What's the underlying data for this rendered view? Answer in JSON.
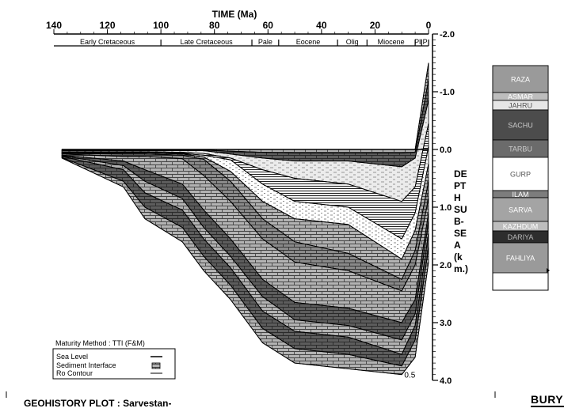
{
  "chart_data": {
    "type": "area",
    "title": "GEOHISTORY PLOT : Sarvestan-",
    "xlabel": "TIME (Ma)",
    "ylabel_lines": [
      "DE",
      "PT",
      "H",
      "SU",
      "B-",
      "SE",
      "A",
      "(k",
      "m.)"
    ],
    "x_ticks": [
      "140",
      "120",
      "100",
      "80",
      "60",
      "40",
      "20",
      "0"
    ],
    "y_ticks": [
      "-2.0",
      "-1.0",
      "0.0",
      "1.0",
      "2.0",
      "3.0",
      "4.0"
    ],
    "xlim": [
      140,
      0
    ],
    "ylim": [
      -2.0,
      4.0
    ],
    "periods": [
      {
        "name": "Early Cretaceous",
        "start": 145,
        "end": 100
      },
      {
        "name": "Late Cretaceous",
        "start": 100,
        "end": 66
      },
      {
        "name": "Pale",
        "start": 66,
        "end": 56
      },
      {
        "name": "Eocene",
        "start": 56,
        "end": 34
      },
      {
        "name": "Olig",
        "start": 34,
        "end": 23
      },
      {
        "name": "Miocene",
        "start": 23,
        "end": 5
      },
      {
        "name": "Pli",
        "start": 5,
        "end": 2.6
      },
      {
        "name": "P",
        "start": 2.6,
        "end": 0
      }
    ],
    "sea_level_depth": 0.0,
    "ro_contour_label": "0.5",
    "burial_surfaces": [
      {
        "time": [
          137,
          114,
          106,
          92,
          84,
          74,
          62,
          50,
          30,
          10,
          5,
          0
        ],
        "depth": [
          0.0,
          0.0,
          0.0,
          0.0,
          0.0,
          0.0,
          0.0,
          0.0,
          0.0,
          0.0,
          0.0,
          -1.5
        ]
      },
      {
        "time": [
          137,
          114,
          106,
          92,
          84,
          74,
          62,
          50,
          30,
          10,
          5,
          0
        ],
        "depth": [
          0.01,
          0.01,
          0.01,
          0.01,
          0.01,
          0.03,
          0.05,
          0.06,
          0.06,
          0.06,
          0.05,
          -1.2
        ]
      },
      {
        "time": [
          137,
          114,
          106,
          92,
          84,
          74,
          62,
          50,
          30,
          10,
          5,
          0
        ],
        "depth": [
          0.02,
          0.02,
          0.02,
          0.02,
          0.02,
          0.08,
          0.15,
          0.2,
          0.2,
          0.3,
          0.15,
          -0.85
        ]
      },
      {
        "time": [
          137,
          114,
          106,
          92,
          84,
          74,
          62,
          50,
          30,
          10,
          5,
          0
        ],
        "depth": [
          0.04,
          0.04,
          0.04,
          0.05,
          0.07,
          0.15,
          0.35,
          0.5,
          0.6,
          0.9,
          0.65,
          -0.45
        ]
      },
      {
        "time": [
          137,
          114,
          106,
          92,
          84,
          74,
          62,
          50,
          30,
          10,
          5,
          0
        ],
        "depth": [
          0.05,
          0.05,
          0.05,
          0.07,
          0.1,
          0.18,
          0.6,
          0.9,
          1.0,
          1.55,
          1.1,
          -0.05
        ]
      },
      {
        "time": [
          137,
          114,
          106,
          92,
          84,
          74,
          62,
          50,
          30,
          10,
          5,
          0
        ],
        "depth": [
          0.06,
          0.06,
          0.06,
          0.08,
          0.13,
          0.38,
          0.9,
          1.2,
          1.3,
          1.9,
          1.4,
          0.25
        ]
      },
      {
        "time": [
          137,
          114,
          106,
          92,
          84,
          74,
          62,
          50,
          30,
          10,
          5,
          0
        ],
        "depth": [
          0.07,
          0.08,
          0.08,
          0.1,
          0.17,
          0.55,
          1.2,
          1.6,
          1.8,
          2.25,
          1.75,
          0.55
        ]
      },
      {
        "time": [
          137,
          114,
          106,
          92,
          84,
          74,
          62,
          50,
          30,
          10,
          5,
          0
        ],
        "depth": [
          0.08,
          0.12,
          0.12,
          0.16,
          0.45,
          0.9,
          1.55,
          1.95,
          2.1,
          2.45,
          2.0,
          0.85
        ]
      },
      {
        "time": [
          137,
          114,
          106,
          92,
          84,
          74,
          62,
          50,
          30,
          10,
          5,
          0
        ],
        "depth": [
          0.1,
          0.2,
          0.35,
          0.6,
          1.05,
          1.55,
          2.25,
          2.65,
          2.75,
          3.0,
          2.6,
          1.1
        ]
      },
      {
        "time": [
          137,
          114,
          106,
          92,
          84,
          74,
          62,
          50,
          30,
          10,
          5,
          0
        ],
        "depth": [
          0.11,
          0.28,
          0.55,
          0.85,
          1.35,
          1.85,
          2.55,
          2.95,
          3.05,
          3.3,
          2.85,
          1.25
        ]
      },
      {
        "time": [
          137,
          114,
          106,
          92,
          84,
          74,
          62,
          50,
          30,
          10,
          5,
          0
        ],
        "depth": [
          0.12,
          0.35,
          0.75,
          1.05,
          1.55,
          2.05,
          2.8,
          3.15,
          3.25,
          3.55,
          3.05,
          1.45
        ]
      },
      {
        "time": [
          137,
          114,
          106,
          92,
          84,
          74,
          62,
          50,
          30,
          10,
          5,
          0
        ],
        "depth": [
          0.14,
          0.55,
          1.0,
          1.35,
          1.85,
          2.35,
          3.1,
          3.45,
          3.55,
          3.75,
          3.3,
          1.7
        ]
      },
      {
        "time": [
          137,
          114,
          106,
          92,
          84,
          74,
          62,
          50,
          30,
          10,
          5,
          0
        ],
        "depth": [
          0.15,
          0.65,
          1.2,
          1.6,
          2.1,
          2.6,
          3.35,
          3.7,
          3.8,
          3.9,
          3.6,
          1.95
        ]
      }
    ],
    "layer_styles": [
      "brick",
      "dark",
      "light",
      "hatch",
      "dash",
      "brick",
      "mid",
      "brick",
      "dark",
      "brick",
      "dark",
      "brick"
    ]
  },
  "legend": {
    "title": "Maturity Method : TTI (F&M)",
    "items": [
      "Sea Level",
      "Sediment Interface",
      "Ro Contour"
    ]
  },
  "stratigraphy": [
    {
      "name": "RAZA",
      "fill": "#9a9a9a",
      "text": "#ffffff",
      "h": 34
    },
    {
      "name": "ASMAR",
      "fill": "#bdbdbd",
      "text": "#ffffff",
      "h": 10
    },
    {
      "name": "JAHRU",
      "fill": "#e6e6e6",
      "text": "#555555",
      "h": 12
    },
    {
      "name": "SACHU",
      "fill": "#4c4c4c",
      "text": "#cccccc",
      "h": 38
    },
    {
      "name": "TARBU",
      "fill": "#6b6b6b",
      "text": "#cccccc",
      "h": 22
    },
    {
      "name": "GURP",
      "fill": "#ffffff",
      "text": "#555555",
      "h": 42
    },
    {
      "name": "ILAM",
      "fill": "#7d7d7d",
      "text": "#ffffff",
      "h": 9
    },
    {
      "name": "SARVA",
      "fill": "#a4a4a4",
      "text": "#ffffff",
      "h": 30
    },
    {
      "name": "KAZHDUM",
      "fill": "#bdbdbd",
      "text": "#ffffff",
      "h": 12
    },
    {
      "name": "DARIYA",
      "fill": "#2d2d2d",
      "text": "#bbbbbb",
      "h": 15
    },
    {
      "name": "FAHLIYA",
      "fill": "#9a9a9a",
      "text": "#ffffff",
      "h": 38
    }
  ],
  "logo": "BURY"
}
